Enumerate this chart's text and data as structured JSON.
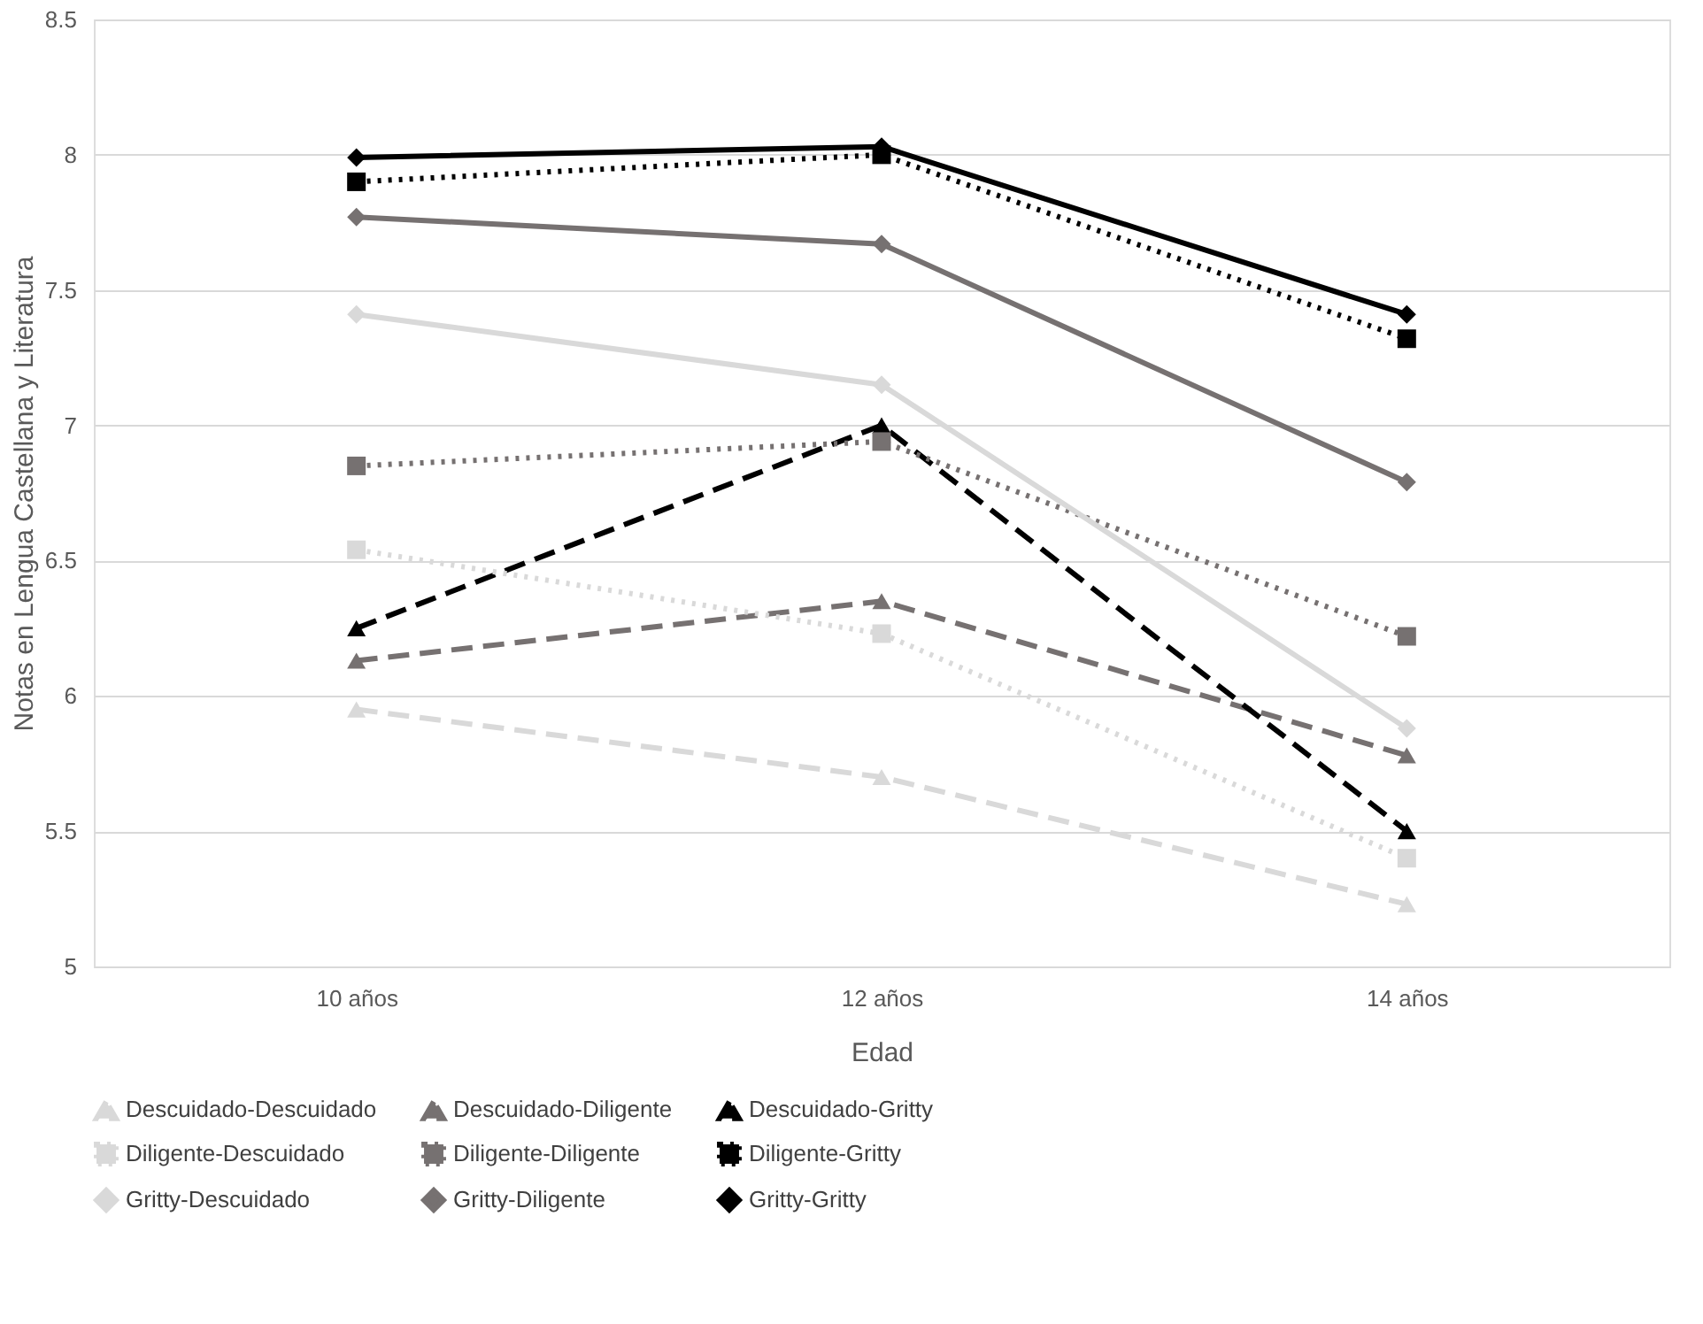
{
  "chart_data": {
    "type": "line",
    "xlabel": "Edad",
    "ylabel": "Notas en Lengua Castellana y Literatura",
    "categories": [
      "10 años",
      "12 años",
      "14 años"
    ],
    "ylim": [
      5,
      8.5
    ],
    "yticks": [
      5,
      5.5,
      6,
      6.5,
      7,
      7.5,
      8,
      8.5
    ],
    "grid": "y",
    "legend": "bottom",
    "series": [
      {
        "name": "Descuidado-Descuidado",
        "color": "#d9d9d9",
        "marker": "triangle",
        "line_style": "dashed",
        "values": [
          5.95,
          5.7,
          5.23
        ]
      },
      {
        "name": "Descuidado-Diligente",
        "color": "#767171",
        "marker": "triangle",
        "line_style": "dashed",
        "values": [
          6.13,
          6.35,
          5.78
        ]
      },
      {
        "name": "Descuidado-Gritty",
        "color": "#000000",
        "marker": "triangle",
        "line_style": "dashed",
        "values": [
          6.25,
          7.0,
          5.5
        ]
      },
      {
        "name": "Diligente-Descuidado",
        "color": "#d9d9d9",
        "marker": "square",
        "line_style": "dotted",
        "values": [
          6.54,
          6.23,
          5.4
        ]
      },
      {
        "name": "Diligente-Diligente",
        "color": "#767171",
        "marker": "square",
        "line_style": "dotted",
        "values": [
          6.85,
          6.94,
          6.22
        ]
      },
      {
        "name": "Diligente-Gritty",
        "color": "#000000",
        "marker": "square",
        "line_style": "dotted",
        "values": [
          7.9,
          8.0,
          7.32
        ]
      },
      {
        "name": "Gritty-Descuidado",
        "color": "#d9d9d9",
        "marker": "diamond",
        "line_style": "solid",
        "values": [
          7.41,
          7.15,
          5.88
        ]
      },
      {
        "name": "Gritty-Diligente",
        "color": "#767171",
        "marker": "diamond",
        "line_style": "solid",
        "values": [
          7.77,
          7.67,
          6.79
        ]
      },
      {
        "name": "Gritty-Gritty",
        "color": "#000000",
        "marker": "diamond",
        "line_style": "solid",
        "values": [
          7.99,
          8.03,
          7.41
        ]
      }
    ]
  }
}
